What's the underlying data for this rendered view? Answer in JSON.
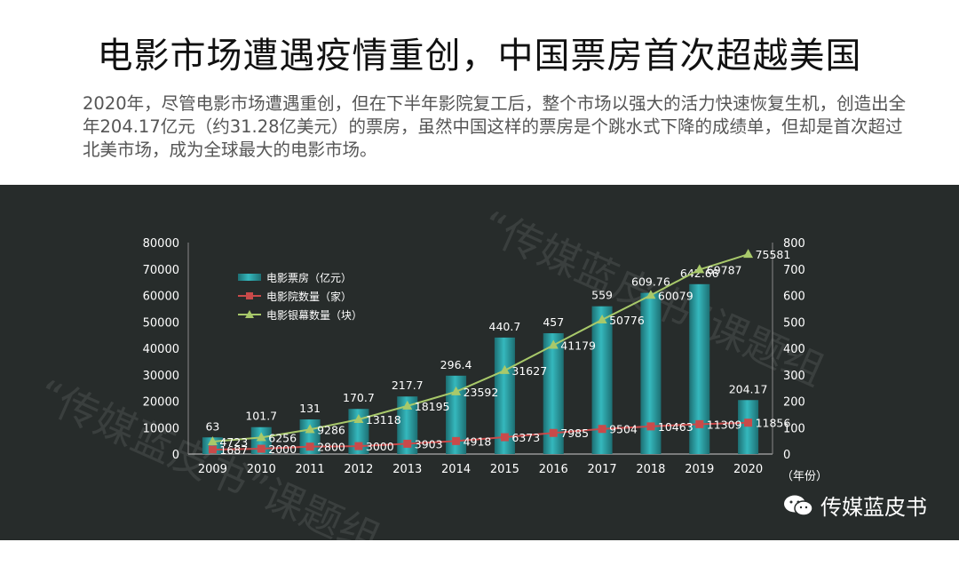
{
  "title": "电影市场遭遇疫情重创，中国票房首次超越美国",
  "description": "2020年，尽管电影市场遭遇重创，但在下半年影院复工后，整个市场以强大的活力快速恢复生机，创造出全年204.17亿元（约31.28亿美元）的票房，虽然中国这样的票房是个跳水式下降的成绩单，但却是首次超过北美市场，成为全球最大的电影市场。",
  "watermark": [
    "“传媒蓝皮书”课题组",
    "“传媒蓝皮书”课题组"
  ],
  "brand": {
    "name": "传媒蓝皮书",
    "icon": "wechat-icon"
  },
  "chart_data": {
    "type": "bar",
    "categories": [
      "2009",
      "2010",
      "2011",
      "2012",
      "2013",
      "2014",
      "2015",
      "2016",
      "2017",
      "2018",
      "2019",
      "2020"
    ],
    "x_unit_label": "（年份）",
    "left_axis": {
      "min": 0,
      "max": 80000,
      "ticks": [
        0,
        10000,
        20000,
        30000,
        40000,
        50000,
        60000,
        70000,
        80000
      ]
    },
    "right_axis": {
      "min": 0,
      "max": 800,
      "ticks": [
        0,
        100,
        200,
        300,
        400,
        500,
        600,
        700,
        800
      ]
    },
    "series": [
      {
        "name": "电影票房（亿元）",
        "kind": "bar",
        "axis": "right",
        "color": "#35b8bd",
        "values": [
          63,
          101.7,
          131,
          170.7,
          217.7,
          296.4,
          440.7,
          457,
          559,
          609.76,
          642.66,
          204.17
        ],
        "labels": [
          "63",
          "101.7",
          "131",
          "170.7",
          "217.7",
          "296.4",
          "440.7",
          "457",
          "559",
          "609.76",
          "642.66",
          "204.17"
        ]
      },
      {
        "name": "电影院数量（家）",
        "kind": "line",
        "marker": "square",
        "axis": "left",
        "color": "#c94a4a",
        "values": [
          1687,
          2000,
          2800,
          3000,
          3903,
          4918,
          6373,
          7985,
          9504,
          10463,
          11309,
          11856
        ],
        "labels": [
          "1687",
          "2000",
          "2800",
          "3000",
          "3903",
          "4918",
          "6373",
          "7985",
          "9504",
          "10463",
          "11309",
          "11856"
        ]
      },
      {
        "name": "电影银幕数量（块）",
        "kind": "line",
        "marker": "triangle",
        "axis": "left",
        "color": "#a8c96a",
        "values": [
          4723,
          6256,
          9286,
          13118,
          18195,
          23592,
          31627,
          41179,
          50776,
          60079,
          69787,
          75581
        ],
        "labels": [
          "4723",
          "6256",
          "9286",
          "13118",
          "18195",
          "23592",
          "31627",
          "41179",
          "50776",
          "60079",
          "69787",
          "75581"
        ]
      }
    ],
    "legend_position": "top-left",
    "grid": false
  }
}
